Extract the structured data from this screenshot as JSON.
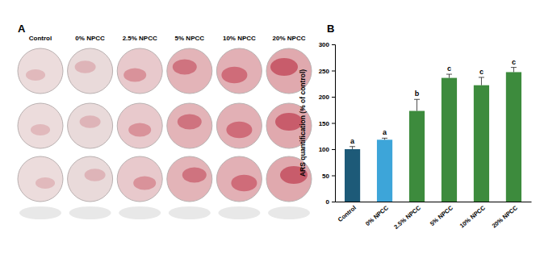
{
  "panels": {
    "a": {
      "label": "A",
      "columns": [
        "Control",
        "0% NPCC",
        "2.5% NPCC",
        "5% NPCC",
        "10% NPCC",
        "20% NPCC"
      ]
    },
    "b": {
      "label": "B"
    }
  },
  "chart_data": {
    "type": "bar",
    "y_label": "ARS quantification (% of control)",
    "categories": [
      "Control",
      "0% NPCC",
      "2.5% NPCC",
      "5% NPCC",
      "10% NPCC",
      "20% NPCC"
    ],
    "values": [
      100,
      118,
      173,
      236,
      222,
      247
    ],
    "errors": [
      5,
      3,
      22,
      7,
      15,
      9
    ],
    "annotations": [
      "a",
      "a",
      "b",
      "c",
      "c",
      "c"
    ],
    "colors": [
      "#1d5a78",
      "#3da5d9",
      "#3d8b3d",
      "#3d8b3d",
      "#3d8b3d",
      "#3d8b3d"
    ],
    "ylim": [
      0,
      300
    ],
    "yticks": [
      0,
      50,
      100,
      150,
      200,
      250,
      300
    ],
    "grid": false
  }
}
